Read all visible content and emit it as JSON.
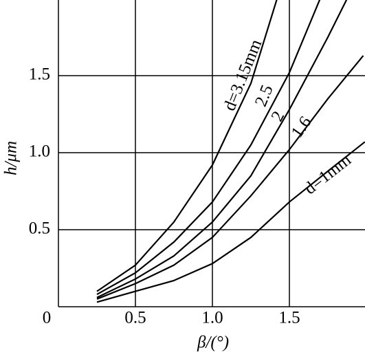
{
  "chart_data": {
    "type": "line",
    "xlabel": "β/(°)",
    "ylabel": "h/μm",
    "xlim": [
      0,
      2
    ],
    "ylim": [
      0,
      2
    ],
    "xticks": [
      0,
      0.5,
      {
        "value": 1,
        "label": "1.0"
      },
      1.5
    ],
    "yticks": [
      0.5,
      {
        "value": 1,
        "label": "1.0"
      },
      1.5
    ],
    "grid": true,
    "series": [
      {
        "name": "d=3.15mm",
        "color": "#000000",
        "x": [
          0.25,
          0.5,
          0.75,
          1.0,
          1.25,
          1.42
        ],
        "values": [
          0.1,
          0.27,
          0.55,
          0.92,
          1.45,
          2.0
        ]
      },
      {
        "name": "2.5",
        "color": "#000000",
        "x": [
          0.25,
          0.5,
          0.75,
          1.0,
          1.25,
          1.5,
          1.7
        ],
        "values": [
          0.08,
          0.22,
          0.42,
          0.68,
          1.05,
          1.52,
          2.0
        ]
      },
      {
        "name": "2",
        "color": "#000000",
        "x": [
          0.25,
          0.5,
          0.75,
          1.0,
          1.25,
          1.5,
          1.75,
          1.875
        ],
        "values": [
          0.06,
          0.18,
          0.33,
          0.55,
          0.85,
          1.28,
          1.75,
          2.0
        ]
      },
      {
        "name": "1.6",
        "color": "#000000",
        "x": [
          0.25,
          0.5,
          0.75,
          1.0,
          1.25,
          1.5,
          1.75,
          1.98
        ],
        "values": [
          0.05,
          0.15,
          0.27,
          0.45,
          0.72,
          1.02,
          1.35,
          1.63
        ]
      },
      {
        "name": "d=1mm",
        "color": "#000000",
        "x": [
          0.25,
          0.5,
          0.75,
          1.0,
          1.25,
          1.5,
          1.75,
          1.99
        ],
        "values": [
          0.03,
          0.1,
          0.17,
          0.28,
          0.45,
          0.68,
          0.88,
          1.07
        ]
      }
    ]
  }
}
